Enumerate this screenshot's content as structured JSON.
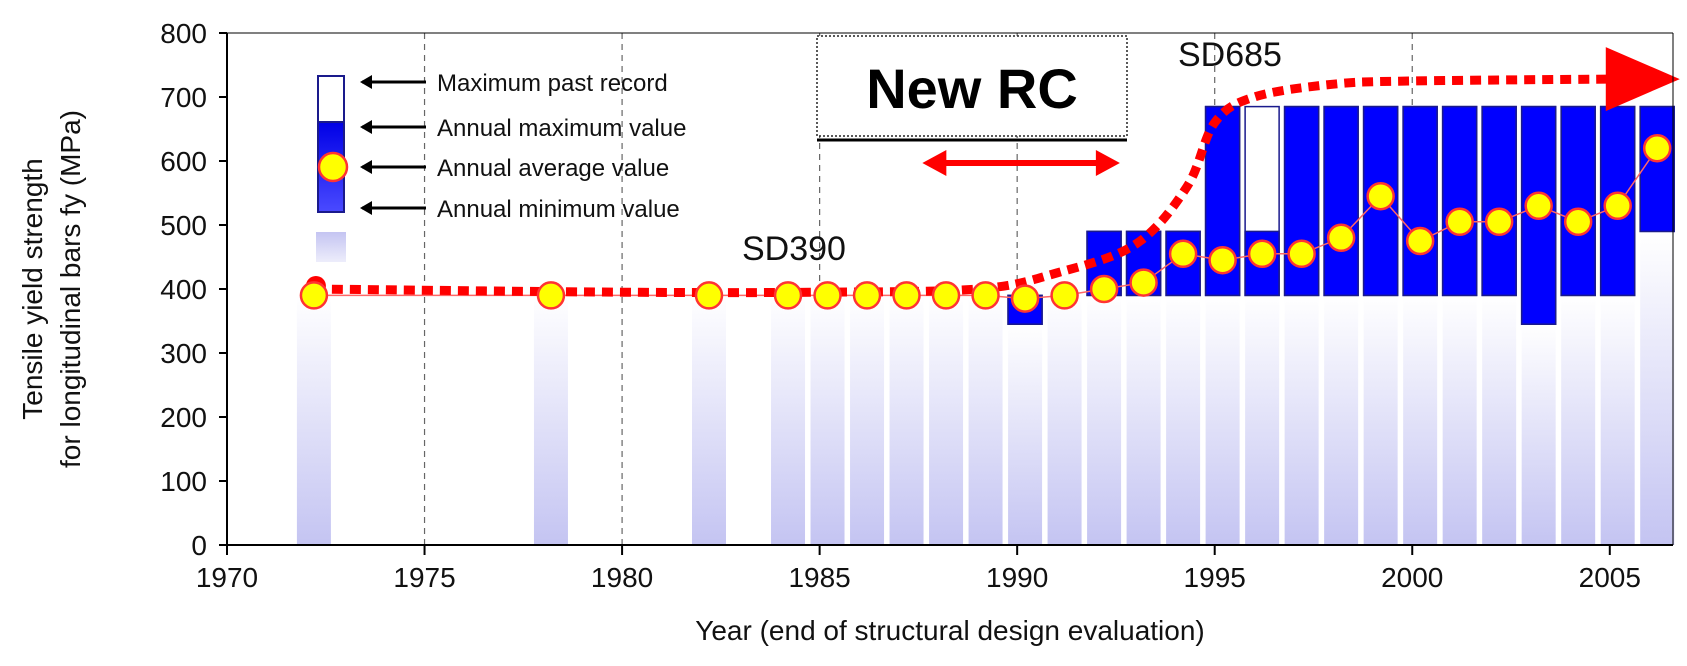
{
  "chart_data": {
    "type": "bar",
    "title": "",
    "xlabel": "Year (end of structural design evaluation)",
    "ylabel_line1": "Tensile yield strength",
    "ylabel_line2": "for longitudinal bars fy (MPa)",
    "xlim": [
      1970,
      2006.6
    ],
    "ylim": [
      0,
      800
    ],
    "x_ticks": [
      1970,
      1975,
      1980,
      1985,
      1990,
      1995,
      2000,
      2005
    ],
    "y_ticks": [
      0,
      100,
      200,
      300,
      400,
      500,
      600,
      700,
      800
    ],
    "grid_x_years": [
      1975,
      1980,
      1985,
      1990,
      1995,
      2000
    ],
    "colors": {
      "bar_fill": "#0000ff",
      "bar_edge": "#1a1a8c",
      "history_fade": "#c8c8f4",
      "avg_marker": "#ffff00",
      "avg_marker_edge": "#ff3333",
      "trend": "#ff0000",
      "grid": "#666666"
    },
    "legend": {
      "entries": [
        "Maximum past record",
        "Annual maximum value",
        "Annual average value",
        "Annual minimum value"
      ]
    },
    "annotations": {
      "sd390": "SD390",
      "sd685": "SD685",
      "new_rc": "New RC",
      "new_rc_span": [
        1987.6,
        1992.6
      ]
    },
    "years": [
      1972.2,
      1978.2,
      1982.2,
      1984.2,
      1985.2,
      1986.2,
      1987.2,
      1988.2,
      1989.2,
      1990.2,
      1991.2,
      1992.2,
      1993.2,
      1994.2,
      1995.2,
      1996.2,
      1997.2,
      1998.2,
      1999.2,
      2000.2,
      2001.2,
      2002.2,
      2003.2,
      2004.2,
      2005.2,
      2006.2
    ],
    "series": [
      {
        "name": "Maximum past record",
        "values": [
          390,
          390,
          390,
          390,
          390,
          390,
          390,
          390,
          390,
          390,
          390,
          490,
          490,
          490,
          685,
          685,
          685,
          685,
          685,
          685,
          685,
          685,
          685,
          685,
          685,
          685
        ]
      },
      {
        "name": "Annual maximum value",
        "values": [
          390,
          390,
          390,
          390,
          390,
          390,
          390,
          390,
          390,
          390,
          390,
          490,
          490,
          490,
          685,
          490,
          685,
          685,
          685,
          685,
          685,
          685,
          685,
          685,
          685,
          685
        ]
      },
      {
        "name": "Annual minimum value",
        "values": [
          390,
          390,
          390,
          390,
          390,
          390,
          390,
          390,
          390,
          345,
          390,
          390,
          390,
          390,
          390,
          390,
          390,
          390,
          390,
          390,
          390,
          390,
          345,
          390,
          390,
          490
        ]
      },
      {
        "name": "Annual average value",
        "values": [
          390,
          390,
          390,
          390,
          390,
          390,
          390,
          390,
          390,
          385,
          390,
          400,
          410,
          455,
          445,
          455,
          455,
          480,
          545,
          475,
          505,
          505,
          530,
          505,
          530,
          620
        ]
      }
    ],
    "trend_points": [
      [
        1972.2,
        400
      ],
      [
        1980,
        395
      ],
      [
        1985,
        395
      ],
      [
        1989,
        400
      ],
      [
        1991,
        425
      ],
      [
        1993,
        470
      ],
      [
        1994.3,
        560
      ],
      [
        1995,
        660
      ],
      [
        1996,
        700
      ],
      [
        1998,
        720
      ],
      [
        2000,
        725
      ],
      [
        2005,
        728
      ]
    ]
  }
}
